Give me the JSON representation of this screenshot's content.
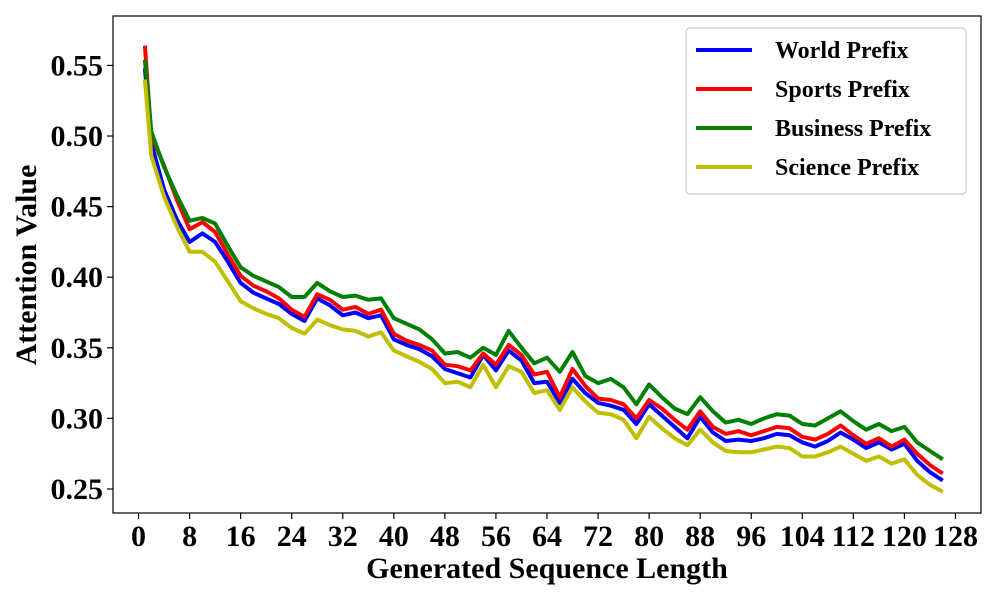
{
  "chart_data": {
    "type": "line",
    "title": "",
    "xlabel": "Generated Sequence Length",
    "ylabel": "Attention Value",
    "xlim": [
      -4,
      132
    ],
    "ylim": [
      0.233,
      0.585
    ],
    "xticks": [
      0,
      8,
      16,
      24,
      32,
      40,
      48,
      56,
      64,
      72,
      80,
      88,
      96,
      104,
      112,
      120,
      128
    ],
    "yticks": [
      0.25,
      0.3,
      0.35,
      0.4,
      0.45,
      0.5,
      0.55
    ],
    "ytick_labels": [
      "0.25",
      "0.30",
      "0.35",
      "0.40",
      "0.45",
      "0.50",
      "0.55"
    ],
    "grid": false,
    "legend_position": "top-right",
    "x": [
      1,
      2,
      4,
      6,
      8,
      10,
      12,
      14,
      16,
      18,
      20,
      22,
      24,
      26,
      28,
      30,
      32,
      34,
      36,
      38,
      40,
      42,
      44,
      46,
      48,
      50,
      52,
      54,
      56,
      58,
      60,
      62,
      64,
      66,
      68,
      70,
      72,
      74,
      76,
      78,
      80,
      82,
      84,
      86,
      88,
      90,
      92,
      94,
      96,
      98,
      100,
      102,
      104,
      106,
      108,
      110,
      112,
      114,
      116,
      118,
      120,
      122,
      124,
      126
    ],
    "series": [
      {
        "name": "World Prefix",
        "color": "#0000ff",
        "values": [
          0.548,
          0.495,
          0.462,
          0.441,
          0.425,
          0.431,
          0.425,
          0.411,
          0.396,
          0.389,
          0.385,
          0.381,
          0.374,
          0.369,
          0.385,
          0.38,
          0.373,
          0.375,
          0.371,
          0.373,
          0.356,
          0.352,
          0.349,
          0.344,
          0.335,
          0.332,
          0.329,
          0.345,
          0.334,
          0.348,
          0.341,
          0.325,
          0.326,
          0.311,
          0.328,
          0.318,
          0.311,
          0.309,
          0.306,
          0.296,
          0.31,
          0.302,
          0.294,
          0.286,
          0.301,
          0.29,
          0.284,
          0.285,
          0.284,
          0.286,
          0.289,
          0.288,
          0.283,
          0.28,
          0.284,
          0.29,
          0.285,
          0.279,
          0.283,
          0.278,
          0.282,
          0.27,
          0.262,
          0.256
        ]
      },
      {
        "name": "Sports Prefix",
        "color": "#ff0000",
        "values": [
          0.564,
          0.5,
          0.479,
          0.455,
          0.434,
          0.439,
          0.432,
          0.416,
          0.401,
          0.394,
          0.39,
          0.385,
          0.377,
          0.372,
          0.388,
          0.384,
          0.377,
          0.379,
          0.374,
          0.377,
          0.36,
          0.355,
          0.352,
          0.348,
          0.338,
          0.337,
          0.334,
          0.346,
          0.338,
          0.352,
          0.345,
          0.331,
          0.333,
          0.315,
          0.335,
          0.323,
          0.314,
          0.313,
          0.31,
          0.3,
          0.313,
          0.307,
          0.299,
          0.292,
          0.305,
          0.294,
          0.289,
          0.291,
          0.288,
          0.291,
          0.294,
          0.293,
          0.287,
          0.285,
          0.289,
          0.295,
          0.288,
          0.282,
          0.286,
          0.28,
          0.285,
          0.275,
          0.267,
          0.261
        ]
      },
      {
        "name": "Business Prefix",
        "color": "#008000",
        "values": [
          0.554,
          0.503,
          0.478,
          0.458,
          0.44,
          0.442,
          0.438,
          0.422,
          0.407,
          0.401,
          0.397,
          0.393,
          0.386,
          0.386,
          0.396,
          0.39,
          0.386,
          0.387,
          0.384,
          0.385,
          0.371,
          0.367,
          0.363,
          0.356,
          0.346,
          0.347,
          0.343,
          0.35,
          0.345,
          0.362,
          0.35,
          0.339,
          0.343,
          0.333,
          0.347,
          0.33,
          0.325,
          0.328,
          0.322,
          0.31,
          0.324,
          0.315,
          0.307,
          0.303,
          0.315,
          0.305,
          0.297,
          0.299,
          0.296,
          0.3,
          0.303,
          0.302,
          0.296,
          0.295,
          0.3,
          0.305,
          0.298,
          0.292,
          0.296,
          0.291,
          0.294,
          0.283,
          0.277,
          0.271
        ]
      },
      {
        "name": "Science Prefix",
        "color": "#bfbf00",
        "values": [
          0.54,
          0.486,
          0.457,
          0.436,
          0.418,
          0.418,
          0.411,
          0.397,
          0.383,
          0.378,
          0.374,
          0.371,
          0.364,
          0.36,
          0.37,
          0.366,
          0.363,
          0.362,
          0.358,
          0.361,
          0.348,
          0.344,
          0.34,
          0.335,
          0.325,
          0.326,
          0.322,
          0.338,
          0.322,
          0.337,
          0.333,
          0.318,
          0.32,
          0.306,
          0.322,
          0.312,
          0.304,
          0.303,
          0.299,
          0.286,
          0.301,
          0.293,
          0.286,
          0.281,
          0.292,
          0.283,
          0.277,
          0.276,
          0.276,
          0.278,
          0.28,
          0.279,
          0.273,
          0.273,
          0.276,
          0.28,
          0.275,
          0.27,
          0.273,
          0.268,
          0.271,
          0.26,
          0.253,
          0.248
        ]
      }
    ]
  }
}
